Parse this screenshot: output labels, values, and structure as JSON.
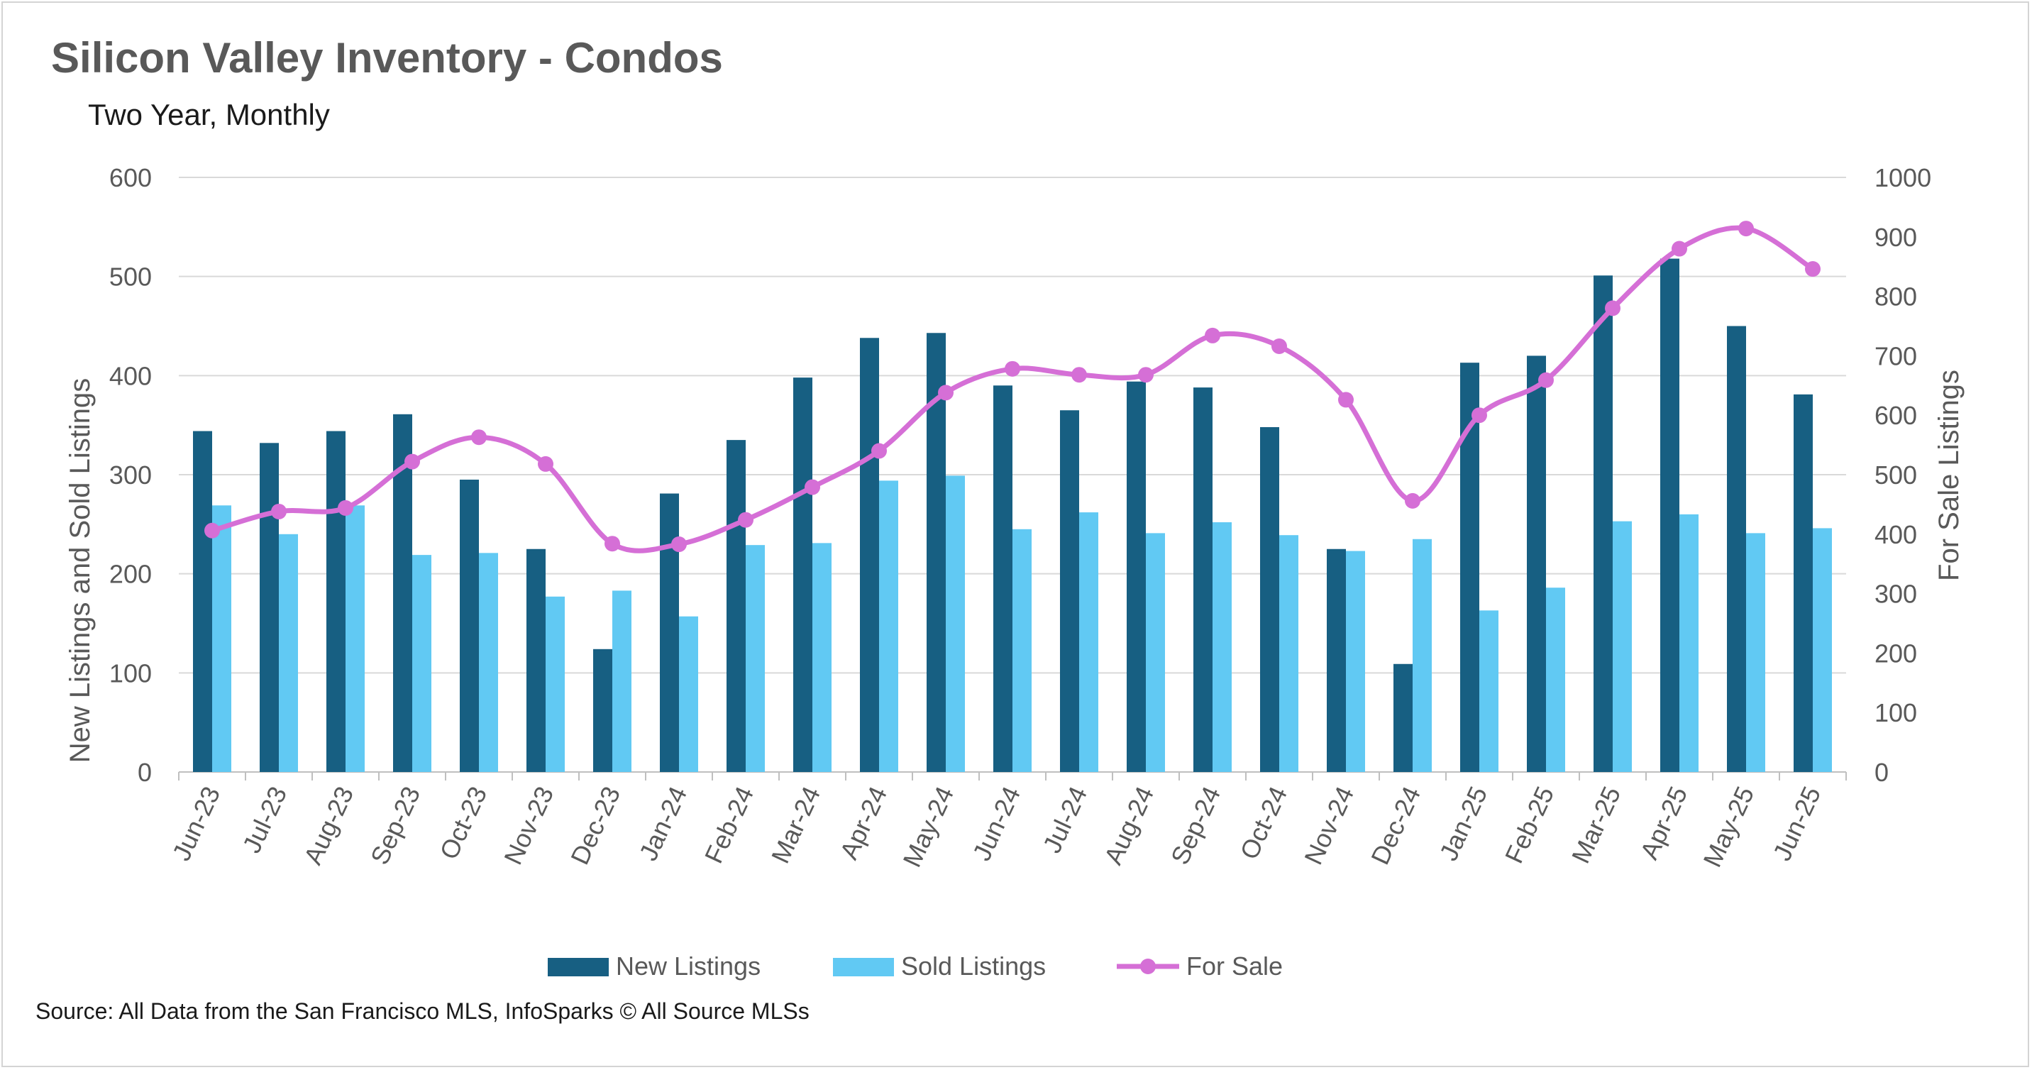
{
  "chart_data": {
    "type": "bar",
    "title": "Silicon Valley Inventory - Condos",
    "subtitle": "Two Year, Monthly",
    "ylabel": "New Listings and Sold Listings",
    "y2label": "For Sale Listings",
    "ylim": [
      0,
      600
    ],
    "y2lim": [
      0,
      1000
    ],
    "yticks": [
      "0",
      "100",
      "200",
      "300",
      "400",
      "500",
      "600"
    ],
    "y2ticks": [
      "0",
      "100",
      "200",
      "300",
      "400",
      "500",
      "600",
      "700",
      "800",
      "900",
      "1000"
    ],
    "grid": true,
    "legend_position": "bottom",
    "categories": [
      "Jun-23",
      "Jul-23",
      "Aug-23",
      "Sep-23",
      "Oct-23",
      "Nov-23",
      "Dec-23",
      "Jan-24",
      "Feb-24",
      "Mar-24",
      "Apr-24",
      "May-24",
      "Jun-24",
      "Jul-24",
      "Aug-24",
      "Sep-24",
      "Oct-24",
      "Nov-24",
      "Dec-24",
      "Jan-25",
      "Feb-25",
      "Mar-25",
      "Apr-25",
      "May-25",
      "Jun-25"
    ],
    "series": [
      {
        "name": "New Listings",
        "type": "bar",
        "axis": "left",
        "color": "#175f82",
        "values": [
          344,
          332,
          344,
          361,
          295,
          225,
          124,
          281,
          335,
          398,
          438,
          443,
          390,
          365,
          394,
          388,
          348,
          225,
          109,
          413,
          420,
          501,
          518,
          450,
          381
        ]
      },
      {
        "name": "Sold Listings",
        "type": "bar",
        "axis": "left",
        "color": "#61c9f3",
        "values": [
          269,
          240,
          269,
          219,
          221,
          177,
          183,
          157,
          229,
          231,
          294,
          299,
          245,
          262,
          241,
          252,
          239,
          223,
          235,
          163,
          186,
          253,
          260,
          241,
          246
        ]
      },
      {
        "name": "For Sale",
        "type": "line",
        "axis": "right",
        "color": "#d56fd6",
        "values": [
          406,
          438,
          444,
          522,
          563,
          518,
          384,
          383,
          424,
          479,
          540,
          638,
          678,
          668,
          668,
          734,
          716,
          626,
          456,
          600,
          659,
          780,
          880,
          914,
          846
        ]
      }
    ]
  },
  "source": "Source: All Data from the San Francisco MLS, InfoSparks © All Source MLSs"
}
